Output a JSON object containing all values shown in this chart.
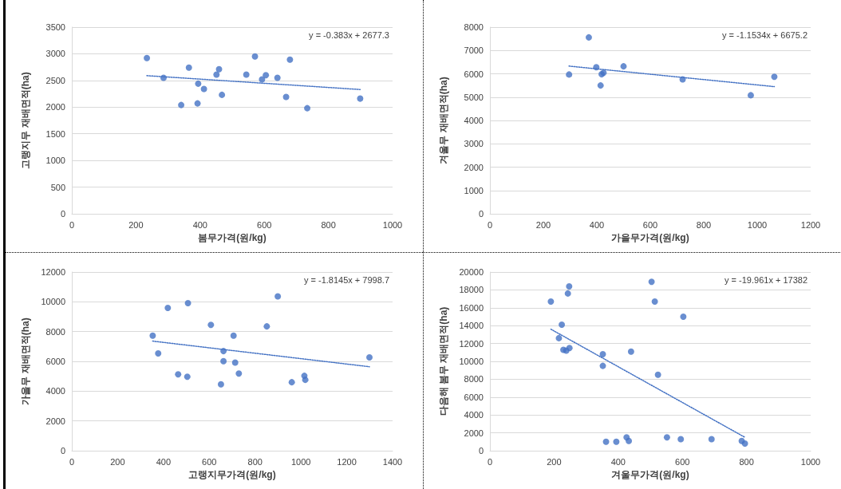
{
  "chart_data": [
    {
      "type": "scatter",
      "xlabel": "봄무가격(원/kg)",
      "ylabel": "고랭지무 재배면적(ha)",
      "xlim": [
        0,
        1000
      ],
      "xticks": [
        0,
        200,
        400,
        600,
        800,
        1000
      ],
      "ylim": [
        0,
        3500
      ],
      "yticks": [
        0,
        500,
        1000,
        1500,
        2000,
        2500,
        3000,
        3500
      ],
      "grid": "y",
      "marker": "circle",
      "annotations": [
        "y = -0.383x + 2677.3"
      ],
      "series": [
        {
          "color": "#4472c4",
          "x": [
            234,
            286,
            341,
            365,
            394,
            392,
            412,
            451,
            459,
            468,
            544,
            571,
            593,
            605,
            641,
            668,
            680,
            734,
            899
          ],
          "values": [
            2920,
            2550,
            2040,
            2740,
            2440,
            2070,
            2340,
            2610,
            2710,
            2230,
            2610,
            2950,
            2520,
            2600,
            2550,
            2190,
            2890,
            1980,
            2160
          ]
        },
        {
          "type": "line",
          "color": "#4472c4",
          "line_style": "dotted",
          "marker": "none",
          "x": [
            234,
            899
          ],
          "values": [
            2590,
            2330
          ]
        }
      ]
    },
    {
      "type": "scatter",
      "xlabel": "가을무가격(원/kg)",
      "ylabel": "겨울무 재배면적(ha)",
      "xlim": [
        0,
        1200
      ],
      "xticks": [
        0,
        200,
        400,
        600,
        800,
        1000,
        1200
      ],
      "ylim": [
        0,
        8000
      ],
      "yticks": [
        0,
        1000,
        2000,
        3000,
        4000,
        5000,
        6000,
        7000,
        8000
      ],
      "grid": "y",
      "marker": "circle",
      "annotations": [
        "y = -1.1534x + 6675.2"
      ],
      "series": [
        {
          "color": "#4472c4",
          "x": [
            296,
            370,
            398,
            414,
            418,
            425,
            500,
            721,
            976,
            1064
          ],
          "values": [
            5970,
            7560,
            6280,
            5500,
            5980,
            6040,
            6320,
            5760,
            5080,
            5870
          ]
        },
        {
          "type": "line",
          "color": "#4472c4",
          "line_style": "dotted",
          "marker": "none",
          "x": [
            296,
            1064
          ],
          "values": [
            6330,
            5450
          ]
        }
      ]
    },
    {
      "type": "scatter",
      "xlabel": "고랭지무가격(원/kg)",
      "ylabel": "가을무 재배면적(ha)",
      "xlim": [
        0,
        1400
      ],
      "xticks": [
        0,
        200,
        400,
        600,
        800,
        1000,
        1200,
        1400
      ],
      "ylim": [
        0,
        12000
      ],
      "yticks": [
        0,
        2000,
        4000,
        6000,
        8000,
        10000,
        12000
      ],
      "grid": "y",
      "marker": "circle",
      "annotations": [
        "y = -1.8145x + 7998.7"
      ],
      "series": [
        {
          "color": "#4472c4",
          "x": [
            353,
            377,
            419,
            464,
            507,
            504,
            607,
            651,
            662,
            662,
            706,
            713,
            729,
            851,
            899,
            960,
            1015,
            1019,
            1299
          ],
          "values": [
            7730,
            6540,
            9590,
            5130,
            9910,
            4970,
            8450,
            4460,
            6690,
            6010,
            7730,
            5920,
            5180,
            8350,
            10370,
            4600,
            5030,
            4760,
            6270
          ]
        },
        {
          "type": "line",
          "color": "#4472c4",
          "line_style": "dotted",
          "marker": "none",
          "x": [
            353,
            1299
          ],
          "values": [
            7360,
            5640
          ]
        }
      ]
    },
    {
      "type": "scatter",
      "xlabel": "겨울무가격(원/kg)",
      "ylabel": "다음해 봄무 재배면적(ha)",
      "xlim": [
        0,
        1000
      ],
      "xticks": [
        0,
        200,
        400,
        600,
        800,
        1000
      ],
      "ylim": [
        0,
        20000
      ],
      "yticks": [
        0,
        2000,
        4000,
        6000,
        8000,
        10000,
        12000,
        14000,
        16000,
        18000,
        20000
      ],
      "grid": "y",
      "marker": "circle",
      "annotations": [
        "y = -19.961x + 17382"
      ],
      "series": [
        {
          "color": "#4472c4",
          "x": [
            190,
            224,
            215,
            229,
            238,
            248,
            243,
            247,
            352,
            352,
            362,
            394,
            426,
            433,
            440,
            504,
            514,
            524,
            552,
            595,
            603,
            691,
            785,
            795
          ],
          "values": [
            16700,
            14100,
            12600,
            11300,
            11200,
            11500,
            17600,
            18400,
            10800,
            9500,
            1000,
            1000,
            1500,
            1100,
            11100,
            18900,
            16700,
            8500,
            1500,
            1300,
            15000,
            1300,
            1100,
            800
          ]
        },
        {
          "type": "line",
          "color": "#4472c4",
          "line_style": "dotted",
          "marker": "none",
          "x": [
            190,
            795
          ],
          "values": [
            13600,
            1500
          ]
        }
      ]
    }
  ]
}
